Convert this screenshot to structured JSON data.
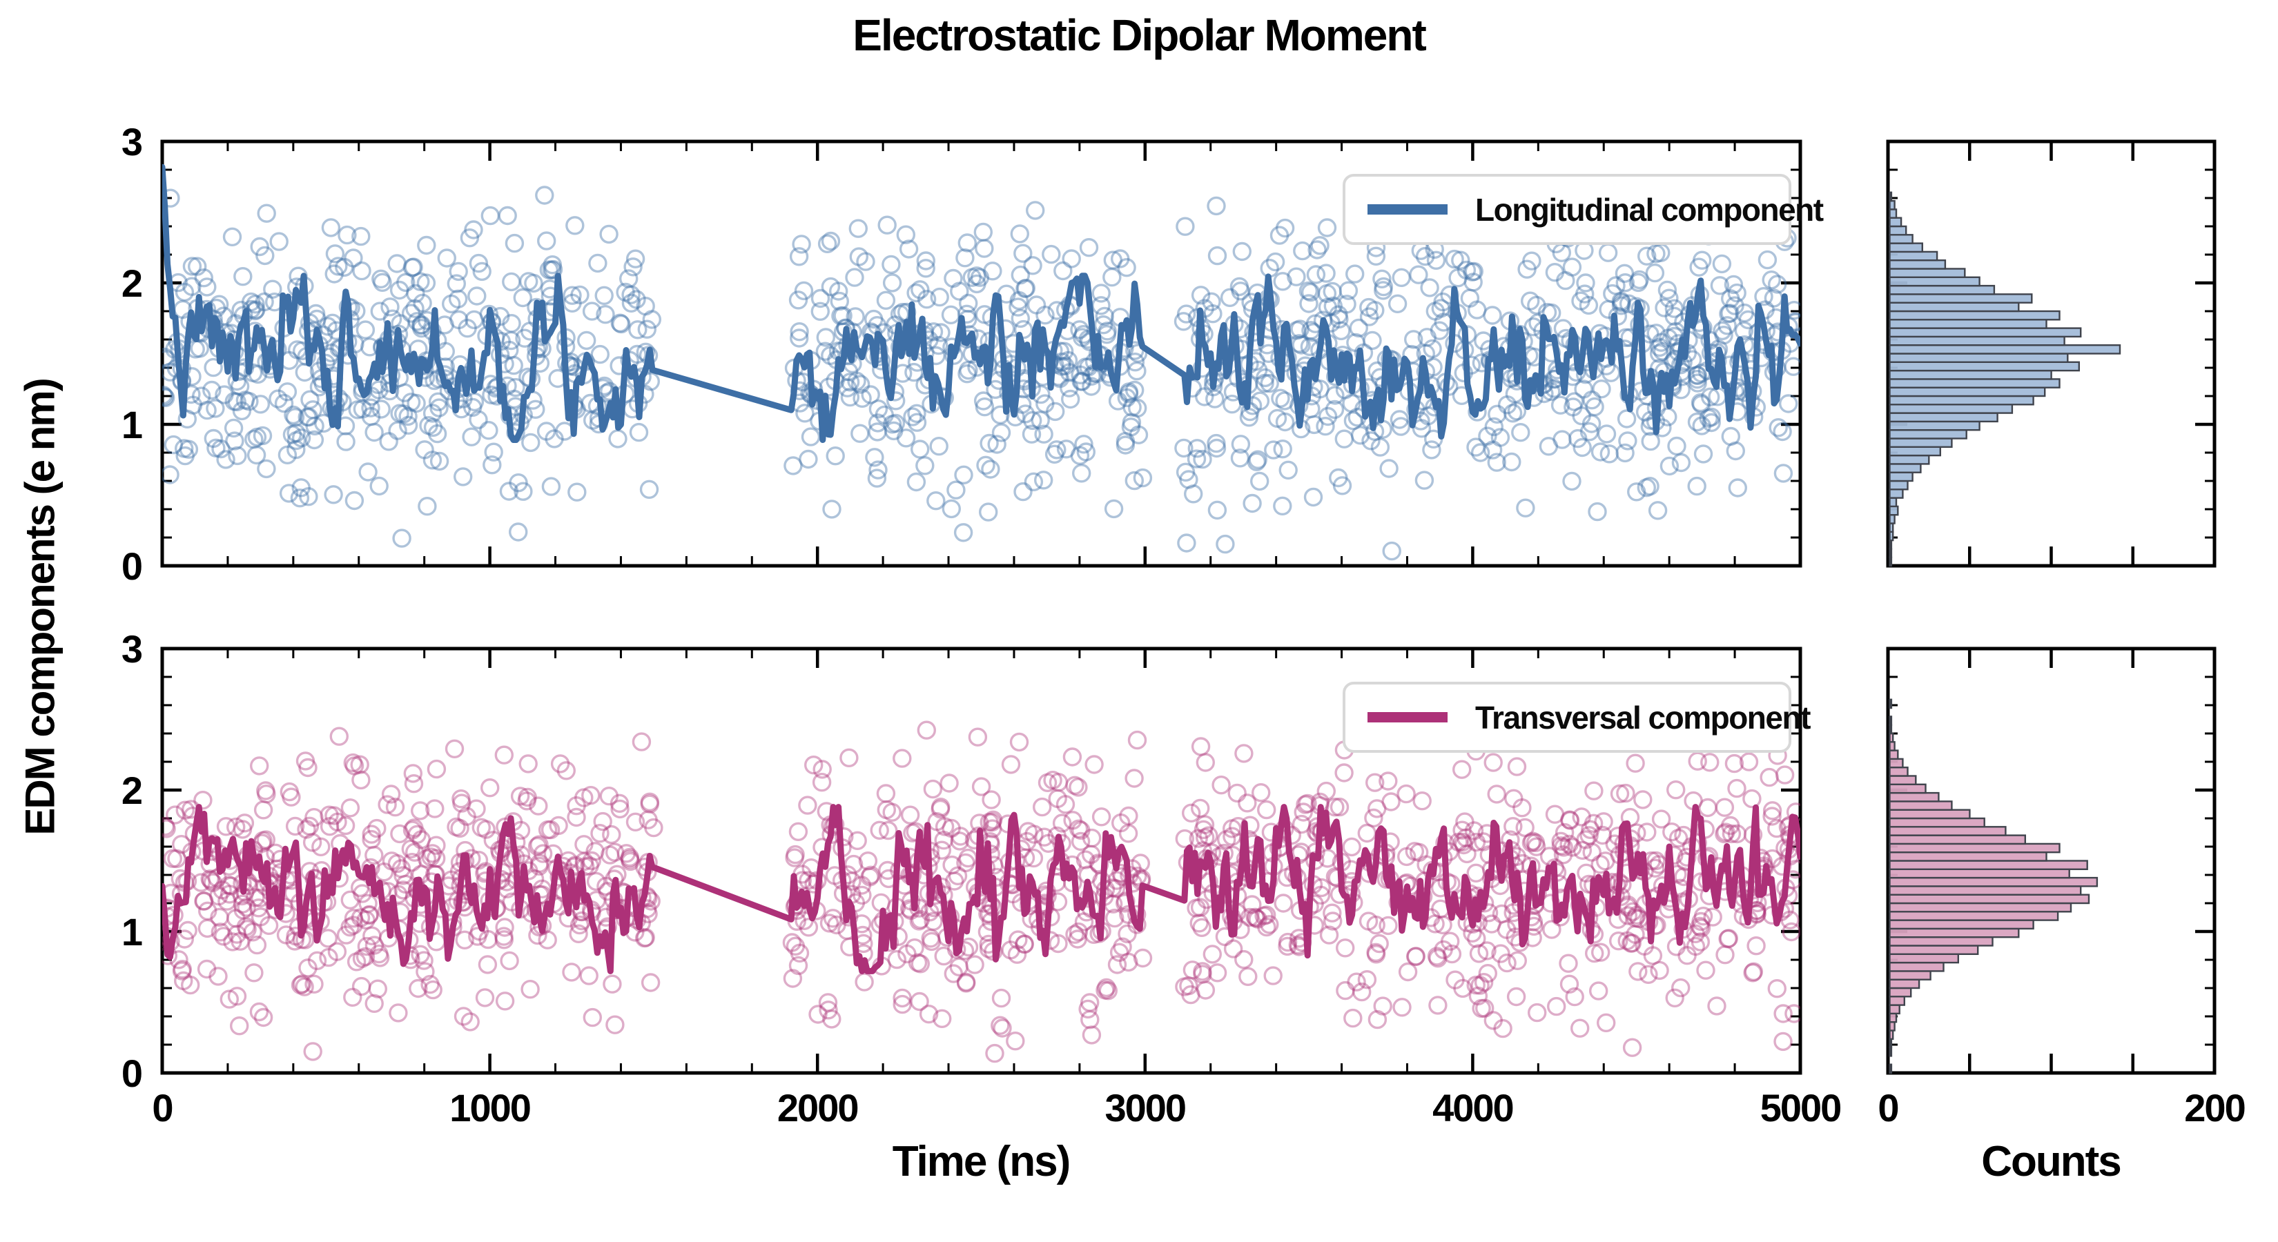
{
  "title": "Electrostatic Dipolar Moment",
  "axes": {
    "y_label": "EDM components (e nm)",
    "x_label_main": "Time (ns)",
    "x_label_hist": "Counts",
    "x_range": [
      0,
      5000
    ],
    "x_ticks": {
      "values": [
        0,
        1000,
        2000,
        3000,
        4000,
        5000
      ],
      "labels": [
        "0",
        "1000",
        "2000",
        "3000",
        "4000",
        "5000"
      ],
      "minor_step": 200
    },
    "y_range": [
      0,
      3
    ],
    "y_ticks": {
      "values": [
        0,
        1,
        2,
        3
      ],
      "labels": [
        "0",
        "1",
        "2",
        "3"
      ],
      "minor_step": 0.2
    },
    "hist_range": [
      0,
      200
    ],
    "hist_ticks": {
      "values": [
        0,
        200
      ],
      "labels": [
        "0",
        "200"
      ],
      "minor_step": 50
    },
    "grid": false,
    "tick_direction": "in"
  },
  "legend": {
    "top_label": "Longitudinal component",
    "bottom_label": "Transversal component",
    "position": "upper right"
  },
  "chart_data": [
    {
      "type": "scatter",
      "name": "longitudinal-component",
      "legend": "Longitudinal component",
      "color": "#3e6fa6",
      "scatter_opacity": 0.42,
      "mean": 1.47,
      "scatter_sd": 0.46,
      "scatter_clip": [
        0.07,
        2.62
      ],
      "n_scatter": 1250,
      "seed_scatter": 11,
      "seed_line": 7,
      "gaps": [
        [
          1500,
          1920
        ],
        [
          2995,
          3115
        ]
      ],
      "start_spike": {
        "x_end": 45,
        "y_start": 2.35
      },
      "dips": [
        {
          "x": 4185,
          "depth": 0.62,
          "width": 28
        }
      ],
      "bumps": [],
      "hist_fill": "#a3bcd9",
      "hist_edge": "#40444d",
      "hist": {
        "bin_start": 0.0,
        "bin_width": 0.06,
        "counts": [
          1,
          1,
          1,
          2,
          2,
          3,
          5,
          4,
          8,
          11,
          14,
          19,
          24,
          31,
          38,
          47,
          55,
          66,
          75,
          88,
          95,
          104,
          99,
          116,
          109,
          141,
          107,
          117,
          96,
          104,
          79,
          87,
          64,
          55,
          46,
          34,
          29,
          20,
          14,
          10,
          7,
          4,
          3,
          1
        ]
      }
    },
    {
      "type": "scatter",
      "name": "transversal-component",
      "legend": "Transversal component",
      "color": "#ad3178",
      "scatter_opacity": 0.4,
      "mean": 1.3,
      "scatter_sd": 0.43,
      "scatter_clip": [
        0.12,
        2.45
      ],
      "n_scatter": 1250,
      "seed_scatter": 23,
      "seed_line": 5,
      "gaps": [
        [
          1500,
          1920
        ],
        [
          2995,
          3115
        ]
      ],
      "start_spike": null,
      "dips": [],
      "bumps": [
        {
          "x": 3070,
          "h": 0.26,
          "width": 40
        }
      ],
      "hist_fill": "#d9a3c0",
      "hist_edge": "#40444d",
      "hist": {
        "bin_start": 0.0,
        "bin_width": 0.06,
        "counts": [
          1,
          0,
          1,
          1,
          2,
          3,
          4,
          6,
          9,
          13,
          18,
          25,
          33,
          42,
          54,
          63,
          79,
          88,
          103,
          111,
          122,
          117,
          127,
          110,
          121,
          96,
          104,
          83,
          71,
          58,
          49,
          38,
          30,
          22,
          16,
          11,
          8,
          5,
          3,
          2,
          1,
          1,
          0,
          1
        ]
      }
    }
  ]
}
